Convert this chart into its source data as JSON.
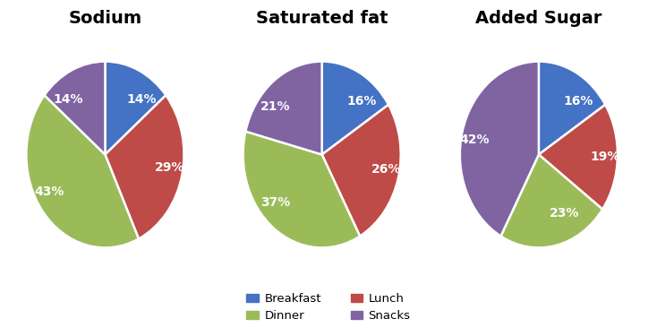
{
  "charts": [
    {
      "title": "Sodium",
      "values": [
        14,
        29,
        43,
        14
      ],
      "labels": [
        "14%",
        "29%",
        "43%",
        "14%"
      ],
      "order": [
        "Breakfast",
        "Lunch",
        "Dinner",
        "Snacks"
      ]
    },
    {
      "title": "Saturated fat",
      "values": [
        16,
        26,
        37,
        21
      ],
      "labels": [
        "16%",
        "26%",
        "37%",
        "21%"
      ],
      "order": [
        "Breakfast",
        "Lunch",
        "Dinner",
        "Snacks"
      ]
    },
    {
      "title": "Added Sugar",
      "values": [
        16,
        19,
        23,
        42
      ],
      "labels": [
        "16%",
        "19%",
        "23%",
        "42%"
      ],
      "order": [
        "Breakfast",
        "Lunch",
        "Dinner",
        "Snacks"
      ]
    }
  ],
  "colors": {
    "Breakfast": "#4472C4",
    "Lunch": "#BE4B48",
    "Dinner": "#9BBB59",
    "Snacks": "#8064A2"
  },
  "legend_labels": [
    "Breakfast",
    "Lunch",
    "Dinner",
    "Snacks"
  ],
  "background_color": "#FFFFFF",
  "title_fontsize": 14,
  "label_fontsize": 10
}
